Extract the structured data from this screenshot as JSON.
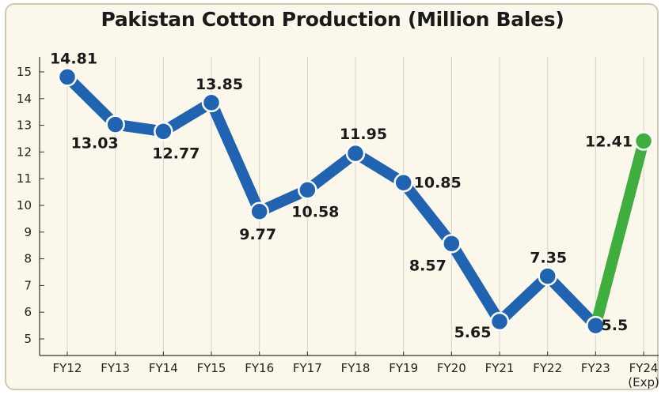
{
  "colors": {
    "primary_series": "#1f63b1",
    "highlight_series": "#3fae3f",
    "background": "#fbf7ea",
    "grid": "#d2d2d2"
  },
  "chart_data": {
    "type": "line",
    "title": "Pakistan Cotton Production (Million Bales)",
    "xlabel": "",
    "ylabel": "",
    "ylim": [
      5,
      15
    ],
    "yticks": [
      5,
      6,
      7,
      8,
      9,
      10,
      11,
      12,
      13,
      14,
      15
    ],
    "grid": "vertical",
    "categories": [
      {
        "line1": "FY12",
        "line2": ""
      },
      {
        "line1": "FY13",
        "line2": ""
      },
      {
        "line1": "FY14",
        "line2": ""
      },
      {
        "line1": "FY15",
        "line2": ""
      },
      {
        "line1": "FY16",
        "line2": ""
      },
      {
        "line1": "FY17",
        "line2": ""
      },
      {
        "line1": "FY18",
        "line2": ""
      },
      {
        "line1": "FY19",
        "line2": ""
      },
      {
        "line1": "FY20",
        "line2": ""
      },
      {
        "line1": "FY21",
        "line2": ""
      },
      {
        "line1": "FY22",
        "line2": ""
      },
      {
        "line1": "FY23",
        "line2": ""
      },
      {
        "line1": "FY24",
        "line2": "(Exp)"
      }
    ],
    "values": [
      14.81,
      13.03,
      12.77,
      13.85,
      9.77,
      10.58,
      11.95,
      10.85,
      8.57,
      5.65,
      7.35,
      5.5,
      12.41
    ],
    "data_labels": [
      "14.81",
      "13.03",
      "12.77",
      "13.85",
      "9.77",
      "10.58",
      "11.95",
      "10.85",
      "8.57",
      "5.65",
      "7.35",
      "5.5",
      "12.41"
    ],
    "highlight_index": 12
  }
}
